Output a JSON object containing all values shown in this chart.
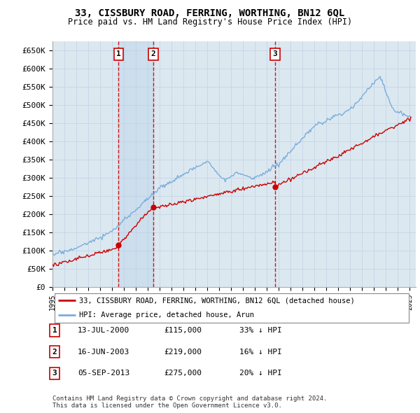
{
  "title": "33, CISSBURY ROAD, FERRING, WORTHING, BN12 6QL",
  "subtitle": "Price paid vs. HM Land Registry's House Price Index (HPI)",
  "ylabel_ticks": [
    "£0",
    "£50K",
    "£100K",
    "£150K",
    "£200K",
    "£250K",
    "£300K",
    "£350K",
    "£400K",
    "£450K",
    "£500K",
    "£550K",
    "£600K",
    "£650K"
  ],
  "ytick_values": [
    0,
    50000,
    100000,
    150000,
    200000,
    250000,
    300000,
    350000,
    400000,
    450000,
    500000,
    550000,
    600000,
    650000
  ],
  "hpi_color": "#7aaddc",
  "price_color": "#cc0000",
  "grid_color": "#c8d8e8",
  "background_color": "#ffffff",
  "plot_bg_color": "#dce8f0",
  "shade_color": "#c8dcee",
  "transactions": [
    {
      "label": "1",
      "date": "13-JUL-2000",
      "price": 115000,
      "pct": "33%",
      "dir": "↓",
      "year_approx": 2000.54
    },
    {
      "label": "2",
      "date": "16-JUN-2003",
      "price": 219000,
      "pct": "16%",
      "dir": "↓",
      "year_approx": 2003.46
    },
    {
      "label": "3",
      "date": "05-SEP-2013",
      "price": 275000,
      "pct": "20%",
      "dir": "↓",
      "year_approx": 2013.68
    }
  ],
  "legend_label_price": "33, CISSBURY ROAD, FERRING, WORTHING, BN12 6QL (detached house)",
  "legend_label_hpi": "HPI: Average price, detached house, Arun",
  "footer": "Contains HM Land Registry data © Crown copyright and database right 2024.\nThis data is licensed under the Open Government Licence v3.0.",
  "xmin": 1995,
  "xmax": 2025.5
}
